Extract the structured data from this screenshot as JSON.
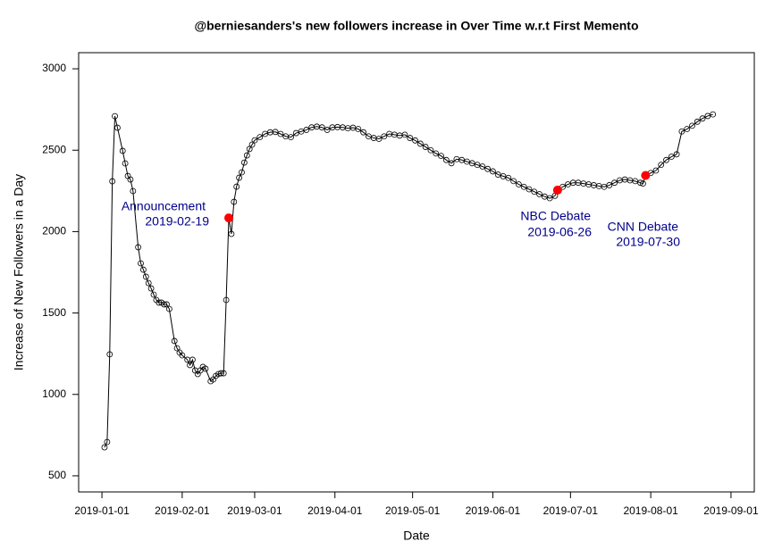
{
  "chart_data": {
    "type": "line",
    "title": "@berniesanders's new followers increase in Over Time w.r.t First Memento",
    "xlabel": "Date",
    "ylabel": "Increase of New Followers in a Day",
    "x": [
      "2019-01-02",
      "2019-01-03",
      "2019-01-04",
      "2019-01-05",
      "2019-01-06",
      "2019-01-07",
      "2019-01-09",
      "2019-01-10",
      "2019-01-11",
      "2019-01-12",
      "2019-01-13",
      "2019-01-15",
      "2019-01-16",
      "2019-01-17",
      "2019-01-18",
      "2019-01-19",
      "2019-01-20",
      "2019-01-21",
      "2019-01-22",
      "2019-01-23",
      "2019-01-24",
      "2019-01-25",
      "2019-01-26",
      "2019-01-27",
      "2019-01-29",
      "2019-01-30",
      "2019-01-31",
      "2019-02-01",
      "2019-02-03",
      "2019-02-04",
      "2019-02-05",
      "2019-02-06",
      "2019-02-07",
      "2019-02-08",
      "2019-02-09",
      "2019-02-10",
      "2019-02-12",
      "2019-02-13",
      "2019-02-14",
      "2019-02-15",
      "2019-02-16",
      "2019-02-17",
      "2019-02-18",
      "2019-02-19",
      "2019-02-20",
      "2019-02-21",
      "2019-02-22",
      "2019-02-23",
      "2019-02-24",
      "2019-02-25",
      "2019-02-26",
      "2019-02-27",
      "2019-02-28",
      "2019-03-01",
      "2019-03-03",
      "2019-03-05",
      "2019-03-07",
      "2019-03-09",
      "2019-03-11",
      "2019-03-13",
      "2019-03-15",
      "2019-03-17",
      "2019-03-19",
      "2019-03-21",
      "2019-03-23",
      "2019-03-25",
      "2019-03-27",
      "2019-03-29",
      "2019-03-31",
      "2019-04-02",
      "2019-04-04",
      "2019-04-06",
      "2019-04-08",
      "2019-04-10",
      "2019-04-12",
      "2019-04-14",
      "2019-04-16",
      "2019-04-18",
      "2019-04-20",
      "2019-04-22",
      "2019-04-24",
      "2019-04-26",
      "2019-04-28",
      "2019-04-30",
      "2019-05-02",
      "2019-05-04",
      "2019-05-06",
      "2019-05-08",
      "2019-05-10",
      "2019-05-12",
      "2019-05-14",
      "2019-05-16",
      "2019-05-18",
      "2019-05-20",
      "2019-05-22",
      "2019-05-24",
      "2019-05-26",
      "2019-05-28",
      "2019-05-30",
      "2019-06-01",
      "2019-06-03",
      "2019-06-05",
      "2019-06-07",
      "2019-06-09",
      "2019-06-11",
      "2019-06-13",
      "2019-06-15",
      "2019-06-17",
      "2019-06-19",
      "2019-06-21",
      "2019-06-23",
      "2019-06-25",
      "2019-06-26",
      "2019-06-28",
      "2019-06-30",
      "2019-07-02",
      "2019-07-04",
      "2019-07-06",
      "2019-07-08",
      "2019-07-10",
      "2019-07-12",
      "2019-07-14",
      "2019-07-16",
      "2019-07-18",
      "2019-07-20",
      "2019-07-22",
      "2019-07-24",
      "2019-07-26",
      "2019-07-28",
      "2019-07-29",
      "2019-07-30",
      "2019-08-01",
      "2019-08-03",
      "2019-08-05",
      "2019-08-07",
      "2019-08-09",
      "2019-08-11",
      "2019-08-13",
      "2019-08-15",
      "2019-08-17",
      "2019-08-19",
      "2019-08-21",
      "2019-08-23",
      "2019-08-25"
    ],
    "series": [
      {
        "color": "#000000",
        "values": [
          675,
          708,
          1246,
          2309,
          2709,
          2638,
          2496,
          2419,
          2342,
          2320,
          2249,
          1904,
          1805,
          1766,
          1723,
          1684,
          1651,
          1613,
          1580,
          1564,
          1564,
          1553,
          1553,
          1525,
          1328,
          1284,
          1257,
          1240,
          1213,
          1180,
          1213,
          1147,
          1125,
          1147,
          1169,
          1158,
          1081,
          1092,
          1114,
          1125,
          1130,
          1130,
          1580,
          2084,
          1986,
          2183,
          2276,
          2331,
          2364,
          2424,
          2468,
          2507,
          2534,
          2561,
          2580,
          2600,
          2610,
          2612,
          2600,
          2585,
          2580,
          2605,
          2615,
          2625,
          2640,
          2645,
          2640,
          2625,
          2640,
          2642,
          2640,
          2635,
          2638,
          2630,
          2610,
          2585,
          2575,
          2570,
          2585,
          2600,
          2595,
          2590,
          2595,
          2575,
          2560,
          2540,
          2520,
          2500,
          2480,
          2465,
          2440,
          2420,
          2445,
          2440,
          2430,
          2420,
          2410,
          2400,
          2385,
          2370,
          2350,
          2340,
          2330,
          2310,
          2290,
          2275,
          2260,
          2245,
          2230,
          2215,
          2205,
          2220,
          2255,
          2275,
          2290,
          2300,
          2300,
          2295,
          2290,
          2285,
          2280,
          2275,
          2285,
          2300,
          2315,
          2320,
          2315,
          2310,
          2300,
          2295,
          2345,
          2360,
          2375,
          2410,
          2440,
          2460,
          2475,
          2615,
          2630,
          2650,
          2675,
          2695,
          2710,
          2720
        ]
      }
    ],
    "events": {
      "color": "#ff0000",
      "x": [
        "2019-02-19",
        "2019-06-26",
        "2019-07-30"
      ],
      "values": [
        2084,
        2255,
        2345
      ]
    },
    "annotations": [
      {
        "color": "#00008b",
        "lines": [
          "Announcement",
          "2019-02-19"
        ]
      },
      {
        "color": "#00008b",
        "lines": [
          "NBC Debate",
          "2019-06-26"
        ]
      },
      {
        "color": "#00008b",
        "lines": [
          "CNN Debate",
          "2019-07-30"
        ]
      }
    ],
    "xlim": [
      "2018-12-23",
      "2019-09-10"
    ],
    "xticks": [
      "2019-01-01",
      "2019-02-01",
      "2019-03-01",
      "2019-04-01",
      "2019-05-01",
      "2019-06-01",
      "2019-07-01",
      "2019-08-01",
      "2019-09-01"
    ],
    "ylim": [
      401,
      3099
    ],
    "yticks": [
      500,
      1000,
      1500,
      2000,
      2500,
      3000
    ]
  }
}
